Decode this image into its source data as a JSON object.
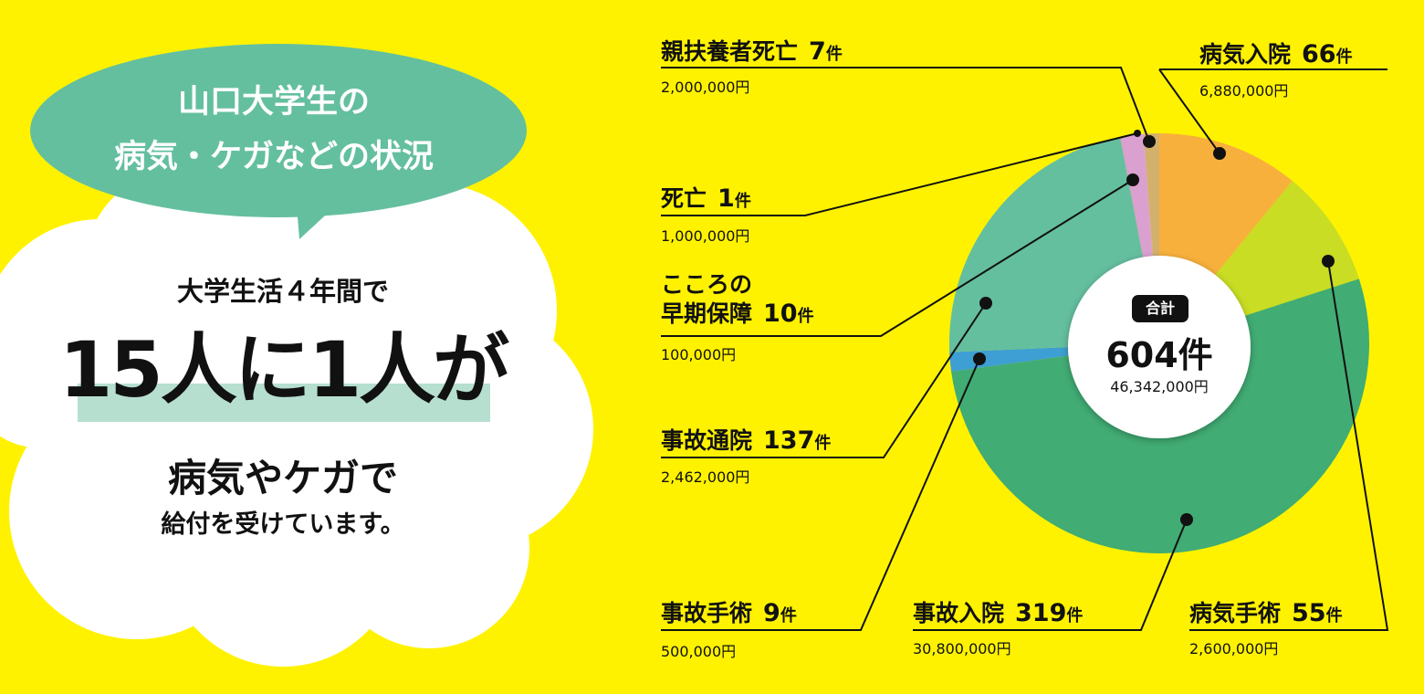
{
  "bubble": {
    "line1": "山口大学生の",
    "line2": "病気・ケガなどの状況"
  },
  "cloud": {
    "line1": "大学生活４年間で",
    "line2": "15人に1人が",
    "line3": "病気やケガで",
    "line4": "給付を受けています。"
  },
  "colors": {
    "background": "#fef200",
    "bubble": "#64bf9f",
    "highlight": "#b6dfcf"
  },
  "chart_data": {
    "type": "pie",
    "style": "donut",
    "start": "12 o'clock, clockwise",
    "center": {
      "tag": "合計",
      "total": "604件",
      "amount": "46,342,000円"
    },
    "slices": [
      {
        "label": "病気入院",
        "count": 66,
        "count_text": "66",
        "unit": "件",
        "amount": "6,880,000円",
        "color": "#f8b03c"
      },
      {
        "label": "病気手術",
        "count": 55,
        "count_text": "55",
        "unit": "件",
        "amount": "2,600,000円",
        "color": "#c8dd23"
      },
      {
        "label": "事故入院",
        "count": 319,
        "count_text": "319",
        "unit": "件",
        "amount": "30,800,000円",
        "color": "#41ac73"
      },
      {
        "label": "事故手術",
        "count": 9,
        "count_text": "9",
        "unit": "件",
        "amount": "500,000円",
        "color": "#3d9fd3"
      },
      {
        "label": "事故通院",
        "count": 137,
        "count_text": "137",
        "unit": "件",
        "amount": "2,462,000円",
        "color": "#64bf9f"
      },
      {
        "label": "こころの早期保障",
        "label_line1": "こころの",
        "label_line2": "早期保障",
        "count": 10,
        "count_text": "10",
        "unit": "件",
        "amount": "100,000円",
        "color": "#d9a0d0"
      },
      {
        "label": "死亡",
        "count": 1,
        "count_text": "1",
        "unit": "件",
        "amount": "1,000,000円",
        "color": "#d9a0d0"
      },
      {
        "label": "親扶養者死亡",
        "count": 7,
        "count_text": "7",
        "unit": "件",
        "amount": "2,000,000円",
        "color": "#d3b06c"
      }
    ]
  }
}
